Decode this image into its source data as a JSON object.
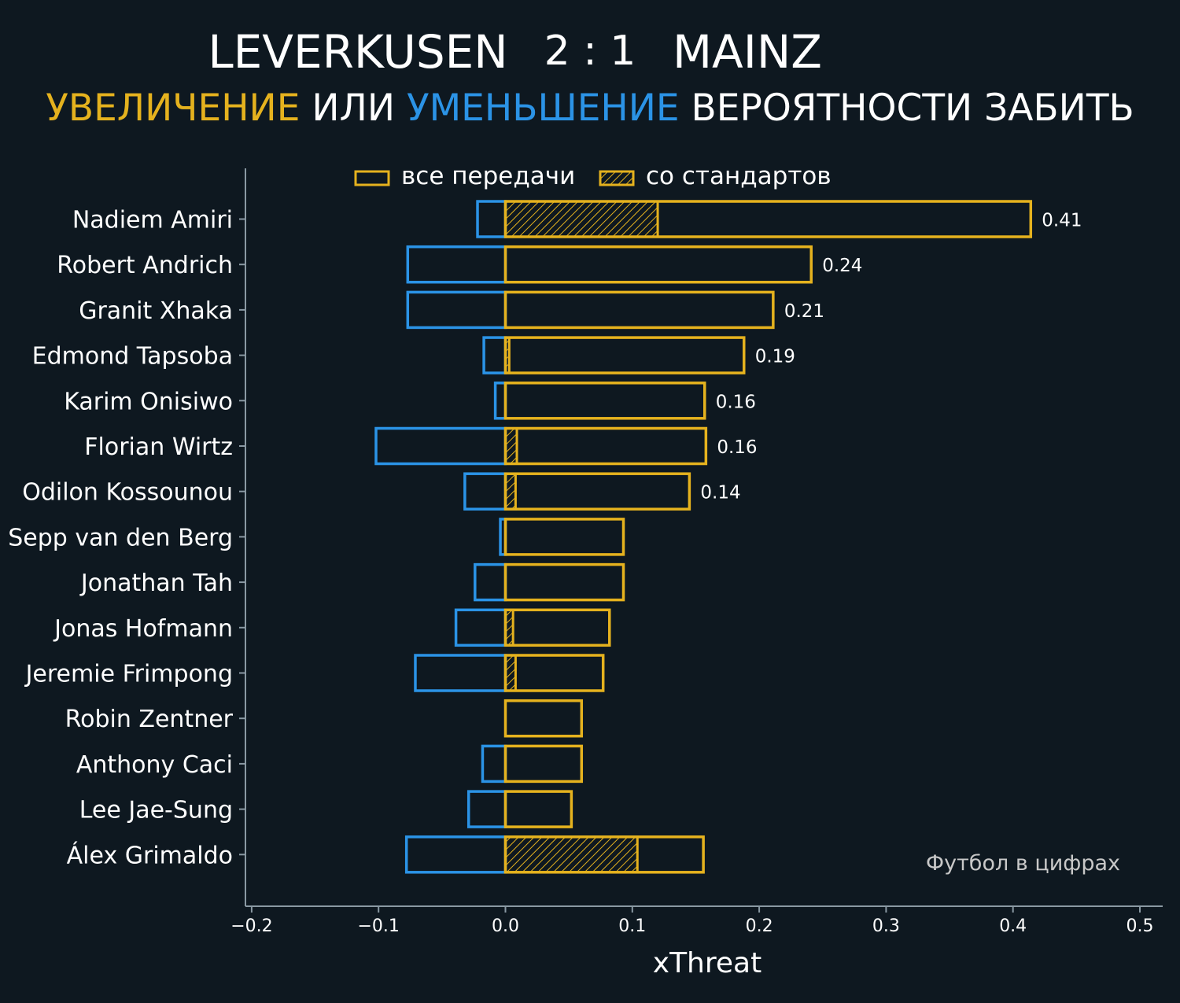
{
  "title": {
    "home": "LEVERKUSEN",
    "score": "2 : 1",
    "away": "MAINZ"
  },
  "subtitle": {
    "part1": "УВЕЛИЧЕНИЕ",
    "part2": " ИЛИ ",
    "part3": "УМЕНЬШЕНИЕ",
    "part4": " ВЕРОЯТНОСТИ ЗАБИТЬ"
  },
  "legend": {
    "all_passes": "все передачи",
    "set_pieces": "со стандартов"
  },
  "watermark": "Футбол в цифрах",
  "colors": {
    "background": "#0e1820",
    "positive": "#e5b21e",
    "negative": "#2b93e6",
    "axis": "#8a99a3",
    "text": "#ffffff"
  },
  "chart_data": {
    "type": "bar",
    "orientation": "horizontal",
    "xlabel": "xThreat",
    "xlim": [
      -0.2,
      0.5
    ],
    "xticks": [
      -0.2,
      -0.1,
      0.0,
      0.1,
      0.2,
      0.3,
      0.4,
      0.5
    ],
    "xtick_labels": [
      "−0.2",
      "−0.1",
      "0.0",
      "0.1",
      "0.2",
      "0.3",
      "0.4",
      "0.5"
    ],
    "legend_position": "top",
    "grid": false,
    "categories": [
      "Nadiem Amiri",
      "Robert Andrich",
      "Granit Xhaka",
      "Edmond Tapsoba",
      "Karim Onisiwo",
      "Florian Wirtz",
      "Odilon Kossounou",
      "Sepp van den Berg",
      "Jonathan Tah",
      "Jonas Hofmann",
      "Jeremie Frimpong",
      "Robin Zentner",
      "Anthony Caci",
      "Lee Jae-Sung",
      "Álex Grimaldo"
    ],
    "series": [
      {
        "name": "все передачи",
        "values": [
          0.414,
          0.241,
          0.211,
          0.188,
          0.157,
          0.158,
          0.145,
          0.093,
          0.093,
          0.082,
          0.077,
          0.06,
          0.06,
          0.052,
          0.156
        ]
      },
      {
        "name": "со стандартов",
        "values": [
          0.12,
          0.0,
          0.0,
          0.003,
          0.0,
          0.009,
          0.008,
          0.0,
          0.0,
          0.006,
          0.008,
          0.0,
          0.0,
          0.0,
          0.104
        ]
      },
      {
        "values": [
          -0.022,
          -0.077,
          -0.077,
          -0.017,
          -0.008,
          -0.102,
          -0.032,
          -0.004,
          -0.024,
          -0.039,
          -0.071,
          0.0,
          -0.018,
          -0.029,
          -0.078
        ]
      }
    ],
    "value_labels": [
      "0.41",
      "0.24",
      "0.21",
      "0.19",
      "0.16",
      "0.16",
      "0.14",
      "",
      "",
      "",
      "",
      "",
      "",
      "",
      ""
    ]
  }
}
